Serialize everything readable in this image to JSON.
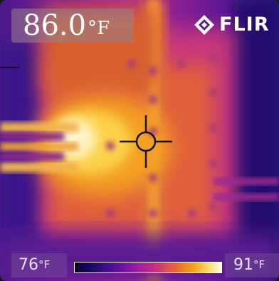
{
  "readout": {
    "temperature": "86.0",
    "unit": "°F"
  },
  "brand": {
    "name": "FLIR",
    "icon": "flir-diamond-logo-icon"
  },
  "scale": {
    "min": "76",
    "max": "91",
    "unit": "°F"
  },
  "colors": {
    "hot": "#fffbe8",
    "warm": "#f8a81a",
    "mid": "#d0307a",
    "cool": "#5a0ea0",
    "cold": "#1a0a6e"
  },
  "crosshair": {
    "icon": "spot-meter-crosshair-icon"
  }
}
